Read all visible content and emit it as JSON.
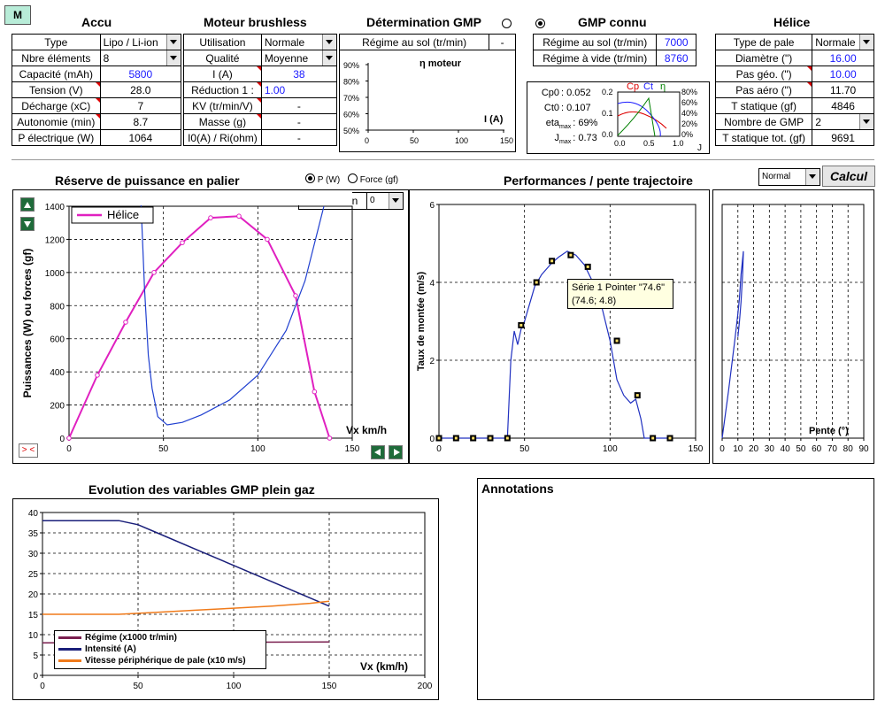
{
  "m_button": "M",
  "accu": {
    "title": "Accu",
    "rows": [
      {
        "label": "Type",
        "value": "Lipo / Li-ion"
      },
      {
        "label": "Nbre éléments",
        "value": "8"
      },
      {
        "label": "Capacité (mAh)",
        "value": "5800"
      },
      {
        "label": "Tension (V)",
        "value": "28.0"
      },
      {
        "label": "Décharge (xC)",
        "value": "7"
      },
      {
        "label": "Autonomie (min)",
        "value": "8.7"
      },
      {
        "label": "P électrique (W)",
        "value": "1064"
      }
    ]
  },
  "moteur": {
    "title": "Moteur brushless",
    "rows": [
      {
        "label": "Utilisation",
        "value": "Normale"
      },
      {
        "label": "Qualité",
        "value": "Moyenne"
      },
      {
        "label": "I (A)",
        "value": "38"
      },
      {
        "label": "Réduction  1 :",
        "value": "1.00"
      },
      {
        "label": "KV (tr/min/V)",
        "value": "-"
      },
      {
        "label": "Masse (g)",
        "value": "-"
      },
      {
        "label": "I0(A) / Ri(ohm)",
        "value": "-"
      }
    ]
  },
  "determination": {
    "title": "Détermination GMP",
    "row_label": "Régime au sol (tr/min)",
    "row_value": "-",
    "chart_title": "η moteur",
    "chart_xlabel": "I (A)",
    "y_ticks": [
      "90%",
      "80%",
      "70%",
      "60%",
      "50%"
    ],
    "x_ticks": [
      "0",
      "50",
      "100",
      "150"
    ]
  },
  "gmp_connu": {
    "title": "GMP connu",
    "rows": [
      {
        "label": "Régime au sol   (tr/min)",
        "value": "7000"
      },
      {
        "label": "Régime à vide   (tr/min)",
        "value": "8760"
      }
    ],
    "coeffs": [
      {
        "label": "Cp0",
        "value": ": 0.052"
      },
      {
        "label": "Ct0",
        "value": ": 0.107"
      },
      {
        "label": "eta",
        "sub": "max",
        "value": ": 69%"
      },
      {
        "label": "J",
        "sub": "max",
        "value": ": 0.73"
      }
    ],
    "mini_legend": {
      "cp": "Cp",
      "ct": "Ct",
      "eta": "η"
    },
    "mini_left_ticks": [
      "0.2",
      "0.1",
      "0.0"
    ],
    "mini_right_ticks": [
      "80%",
      "60%",
      "40%",
      "20%",
      "0%"
    ],
    "mini_x_ticks": [
      "0.0",
      "0.5",
      "1.0"
    ],
    "mini_xlabel": "J"
  },
  "helice": {
    "title": "Hélice",
    "rows": [
      {
        "label": "Type de pale",
        "value": "Normale"
      },
      {
        "label": "Diamètre (\")",
        "value": "16.00"
      },
      {
        "label": "Pas géo. (\")",
        "value": "10.00"
      },
      {
        "label": "Pas aéro (\")",
        "value": "11.70"
      },
      {
        "label": "T statique (gf)",
        "value": "4846"
      },
      {
        "label": "Nombre de GMP",
        "value": "2"
      },
      {
        "label": "T statique tot. (gf)",
        "value": "9691"
      }
    ]
  },
  "reserve": {
    "title": "Réserve de puissance en palier",
    "radio_p": "P (W)",
    "radio_force": "Force (gf)",
    "inclinaison_label": "Inclinaison",
    "inclinaison_value": "0",
    "legend": "Hélice",
    "ylabel": "Puissances (W) ou forces (gf)",
    "xlabel": "Vx km/h",
    "reset_label": "> <"
  },
  "performances": {
    "title": "Performances / pente trajectoire",
    "mode_value": "Normal",
    "calcul_label": "Calcul",
    "ylabel": "Taux de montée (m/s)",
    "tooltip_line1": "Série 1 Pointer \"74.6\"",
    "tooltip_line2": "(74.6; 4.8)",
    "pente_label": "Pente (°)"
  },
  "evolution": {
    "title": "Evolution des variables GMP plein gaz",
    "xlabel": "Vx  (km/h)",
    "legend": [
      {
        "name": "Régime (x1000 tr/min)",
        "color": "#7a1f4f"
      },
      {
        "name": "Intensité (A)",
        "color": "#1a1f7a"
      },
      {
        "name": "Vitesse périphérique de pale (x10 m/s)",
        "color": "#f07a1a"
      }
    ]
  },
  "annotations": {
    "title": "Annotations"
  },
  "chart_data": [
    {
      "type": "line",
      "id": "reserve",
      "xlim": [
        0,
        150
      ],
      "ylim": [
        0,
        1400
      ],
      "x_ticks": [
        0,
        50,
        100,
        150
      ],
      "y_ticks": [
        0,
        200,
        400,
        600,
        800,
        1000,
        1200,
        1400
      ],
      "series": [
        {
          "name": "Hélice",
          "color": "#e020c0",
          "x": [
            0,
            15,
            30,
            45,
            60,
            75,
            90,
            105,
            120,
            130,
            138
          ],
          "y": [
            0,
            380,
            700,
            1000,
            1180,
            1330,
            1340,
            1200,
            860,
            280,
            0
          ]
        },
        {
          "color": "#2040d0",
          "x": [
            38,
            40,
            42,
            44,
            47,
            52,
            60,
            70,
            85,
            100,
            115,
            125,
            135
          ],
          "y": [
            1450,
            900,
            500,
            300,
            130,
            80,
            95,
            140,
            230,
            380,
            650,
            950,
            1400
          ]
        }
      ]
    },
    {
      "type": "line",
      "id": "performances",
      "xlim": [
        0,
        150
      ],
      "ylim": [
        0,
        6
      ],
      "x_ticks": [
        0,
        50,
        100,
        150
      ],
      "y_ticks": [
        0,
        2,
        4,
        6
      ],
      "series": [
        {
          "color": "#2030c0",
          "x": [
            0,
            40,
            42,
            44,
            46,
            48,
            50,
            52,
            56,
            60,
            66,
            70,
            75,
            80,
            85,
            90,
            95,
            100,
            104,
            108,
            112,
            115,
            118,
            120,
            125,
            135
          ],
          "y": [
            0,
            0,
            2.0,
            2.75,
            2.4,
            2.8,
            3.0,
            3.3,
            3.9,
            4.2,
            4.5,
            4.65,
            4.8,
            4.7,
            4.45,
            4.0,
            3.4,
            2.5,
            1.5,
            1.1,
            0.9,
            1.0,
            0.5,
            0,
            0,
            0
          ],
          "markers_x": [
            0,
            10,
            20,
            30,
            40,
            48,
            57,
            66,
            77,
            87,
            104,
            116,
            125,
            135
          ],
          "markers_y": [
            0,
            0,
            0,
            0,
            0,
            2.9,
            4.0,
            4.55,
            4.7,
            4.4,
            2.5,
            1.1,
            0,
            0
          ]
        }
      ]
    },
    {
      "type": "line",
      "id": "pente",
      "xlim": [
        0,
        90
      ],
      "ylim": [
        0,
        6
      ],
      "x_ticks": [
        0,
        10,
        20,
        30,
        40,
        50,
        60,
        70,
        80,
        90
      ],
      "series": [
        {
          "color": "#2030c0",
          "x": [
            0,
            4,
            8,
            10,
            11,
            12,
            13,
            13.5,
            13,
            12,
            11,
            10
          ],
          "y": [
            0,
            1.2,
            2.5,
            3.2,
            3.6,
            4.2,
            4.6,
            4.8,
            4.2,
            3.5,
            3.0,
            2.6
          ]
        }
      ]
    },
    {
      "type": "line",
      "id": "evolution",
      "xlim": [
        0,
        200
      ],
      "ylim": [
        0,
        40
      ],
      "x_ticks": [
        0,
        50,
        100,
        150,
        200
      ],
      "y_ticks": [
        0,
        5,
        10,
        15,
        20,
        25,
        30,
        35,
        40
      ],
      "series": [
        {
          "name": "Régime (x1000 tr/min)",
          "color": "#7a1f4f",
          "x": [
            0,
            150
          ],
          "y": [
            8,
            8.2
          ]
        },
        {
          "name": "Intensité (A)",
          "color": "#1a1f7a",
          "x": [
            0,
            40,
            50,
            60,
            80,
            100,
            120,
            140,
            150
          ],
          "y": [
            38,
            38,
            37,
            35,
            31,
            27,
            23,
            19,
            17
          ]
        },
        {
          "name": "Vitesse périphérique de pale (x10 m/s)",
          "color": "#f07a1a",
          "x": [
            0,
            40,
            60,
            80,
            100,
            120,
            140,
            150
          ],
          "y": [
            15,
            15,
            15.5,
            16,
            16.5,
            17,
            17.7,
            18.2
          ]
        }
      ]
    }
  ]
}
